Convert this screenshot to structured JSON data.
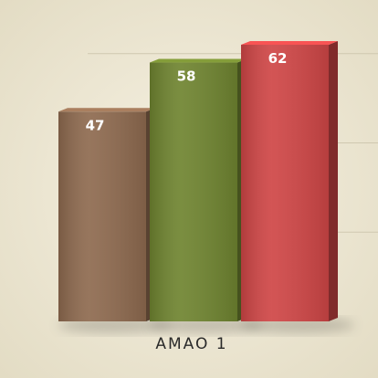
{
  "chart_data": {
    "type": "bar",
    "title": "",
    "xlabel": "",
    "ylabel": "",
    "categories": [
      "AMAO 1"
    ],
    "series": [
      {
        "values": [
          47
        ],
        "color": "#8e6a4f"
      },
      {
        "values": [
          58
        ],
        "color": "#6f8430"
      },
      {
        "values": [
          62
        ],
        "color": "#cf4646"
      }
    ],
    "ylim": [
      0,
      70
    ],
    "grid": true,
    "legend": "none"
  }
}
